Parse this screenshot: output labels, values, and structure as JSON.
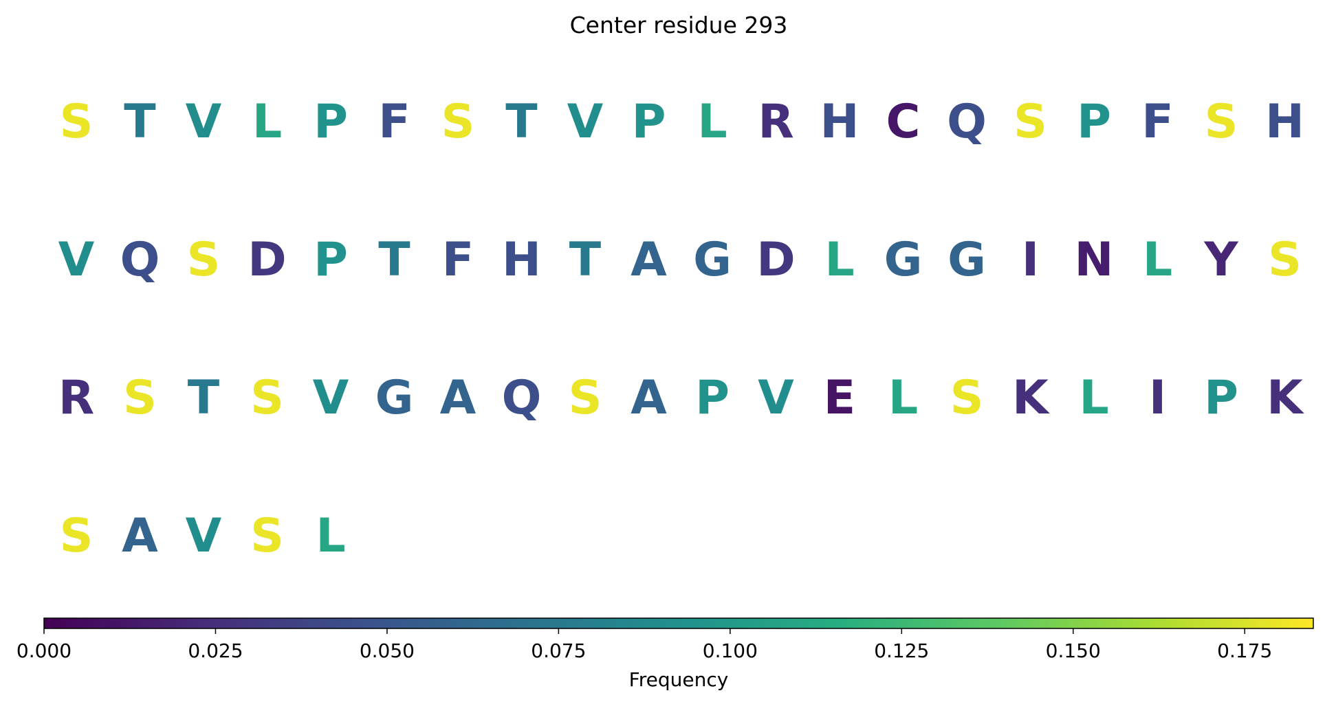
{
  "chart_data": {
    "type": "heatmap",
    "title": "Center residue 293",
    "letters": [
      {
        "aa": "S",
        "value": 0.18
      },
      {
        "aa": "T",
        "value": 0.075
      },
      {
        "aa": "V",
        "value": 0.09
      },
      {
        "aa": "L",
        "value": 0.11
      },
      {
        "aa": "P",
        "value": 0.095
      },
      {
        "aa": "F",
        "value": 0.045
      },
      {
        "aa": "S",
        "value": 0.18
      },
      {
        "aa": "T",
        "value": 0.075
      },
      {
        "aa": "V",
        "value": 0.09
      },
      {
        "aa": "P",
        "value": 0.095
      },
      {
        "aa": "L",
        "value": 0.11
      },
      {
        "aa": "R",
        "value": 0.025
      },
      {
        "aa": "H",
        "value": 0.045
      },
      {
        "aa": "C",
        "value": 0.012
      },
      {
        "aa": "Q",
        "value": 0.045
      },
      {
        "aa": "S",
        "value": 0.18
      },
      {
        "aa": "P",
        "value": 0.095
      },
      {
        "aa": "F",
        "value": 0.045
      },
      {
        "aa": "S",
        "value": 0.18
      },
      {
        "aa": "H",
        "value": 0.045
      },
      {
        "aa": "V",
        "value": 0.09
      },
      {
        "aa": "Q",
        "value": 0.045
      },
      {
        "aa": "S",
        "value": 0.18
      },
      {
        "aa": "D",
        "value": 0.03
      },
      {
        "aa": "P",
        "value": 0.095
      },
      {
        "aa": "T",
        "value": 0.075
      },
      {
        "aa": "F",
        "value": 0.045
      },
      {
        "aa": "H",
        "value": 0.045
      },
      {
        "aa": "T",
        "value": 0.075
      },
      {
        "aa": "A",
        "value": 0.06
      },
      {
        "aa": "G",
        "value": 0.06
      },
      {
        "aa": "D",
        "value": 0.03
      },
      {
        "aa": "L",
        "value": 0.11
      },
      {
        "aa": "G",
        "value": 0.06
      },
      {
        "aa": "G",
        "value": 0.06
      },
      {
        "aa": "I",
        "value": 0.025
      },
      {
        "aa": "N",
        "value": 0.015
      },
      {
        "aa": "L",
        "value": 0.11
      },
      {
        "aa": "Y",
        "value": 0.02
      },
      {
        "aa": "S",
        "value": 0.18
      },
      {
        "aa": "R",
        "value": 0.025
      },
      {
        "aa": "S",
        "value": 0.18
      },
      {
        "aa": "T",
        "value": 0.075
      },
      {
        "aa": "S",
        "value": 0.18
      },
      {
        "aa": "V",
        "value": 0.09
      },
      {
        "aa": "G",
        "value": 0.06
      },
      {
        "aa": "A",
        "value": 0.06
      },
      {
        "aa": "Q",
        "value": 0.045
      },
      {
        "aa": "S",
        "value": 0.18
      },
      {
        "aa": "A",
        "value": 0.06
      },
      {
        "aa": "P",
        "value": 0.095
      },
      {
        "aa": "V",
        "value": 0.09
      },
      {
        "aa": "E",
        "value": 0.01
      },
      {
        "aa": "L",
        "value": 0.11
      },
      {
        "aa": "S",
        "value": 0.18
      },
      {
        "aa": "K",
        "value": 0.025
      },
      {
        "aa": "L",
        "value": 0.11
      },
      {
        "aa": "I",
        "value": 0.025
      },
      {
        "aa": "P",
        "value": 0.095
      },
      {
        "aa": "K",
        "value": 0.025
      },
      {
        "aa": "S",
        "value": 0.18
      },
      {
        "aa": "A",
        "value": 0.06
      },
      {
        "aa": "V",
        "value": 0.09
      },
      {
        "aa": "S",
        "value": 0.18
      },
      {
        "aa": "L",
        "value": 0.11
      }
    ],
    "colorbar": {
      "label": "Frequency",
      "colormap": "viridis",
      "range": [
        0,
        0.185
      ],
      "ticks": [
        0.0,
        0.025,
        0.05,
        0.075,
        0.1,
        0.125,
        0.15,
        0.175
      ],
      "tick_labels": [
        "0.000",
        "0.025",
        "0.050",
        "0.075",
        "0.100",
        "0.125",
        "0.150",
        "0.175"
      ]
    }
  }
}
